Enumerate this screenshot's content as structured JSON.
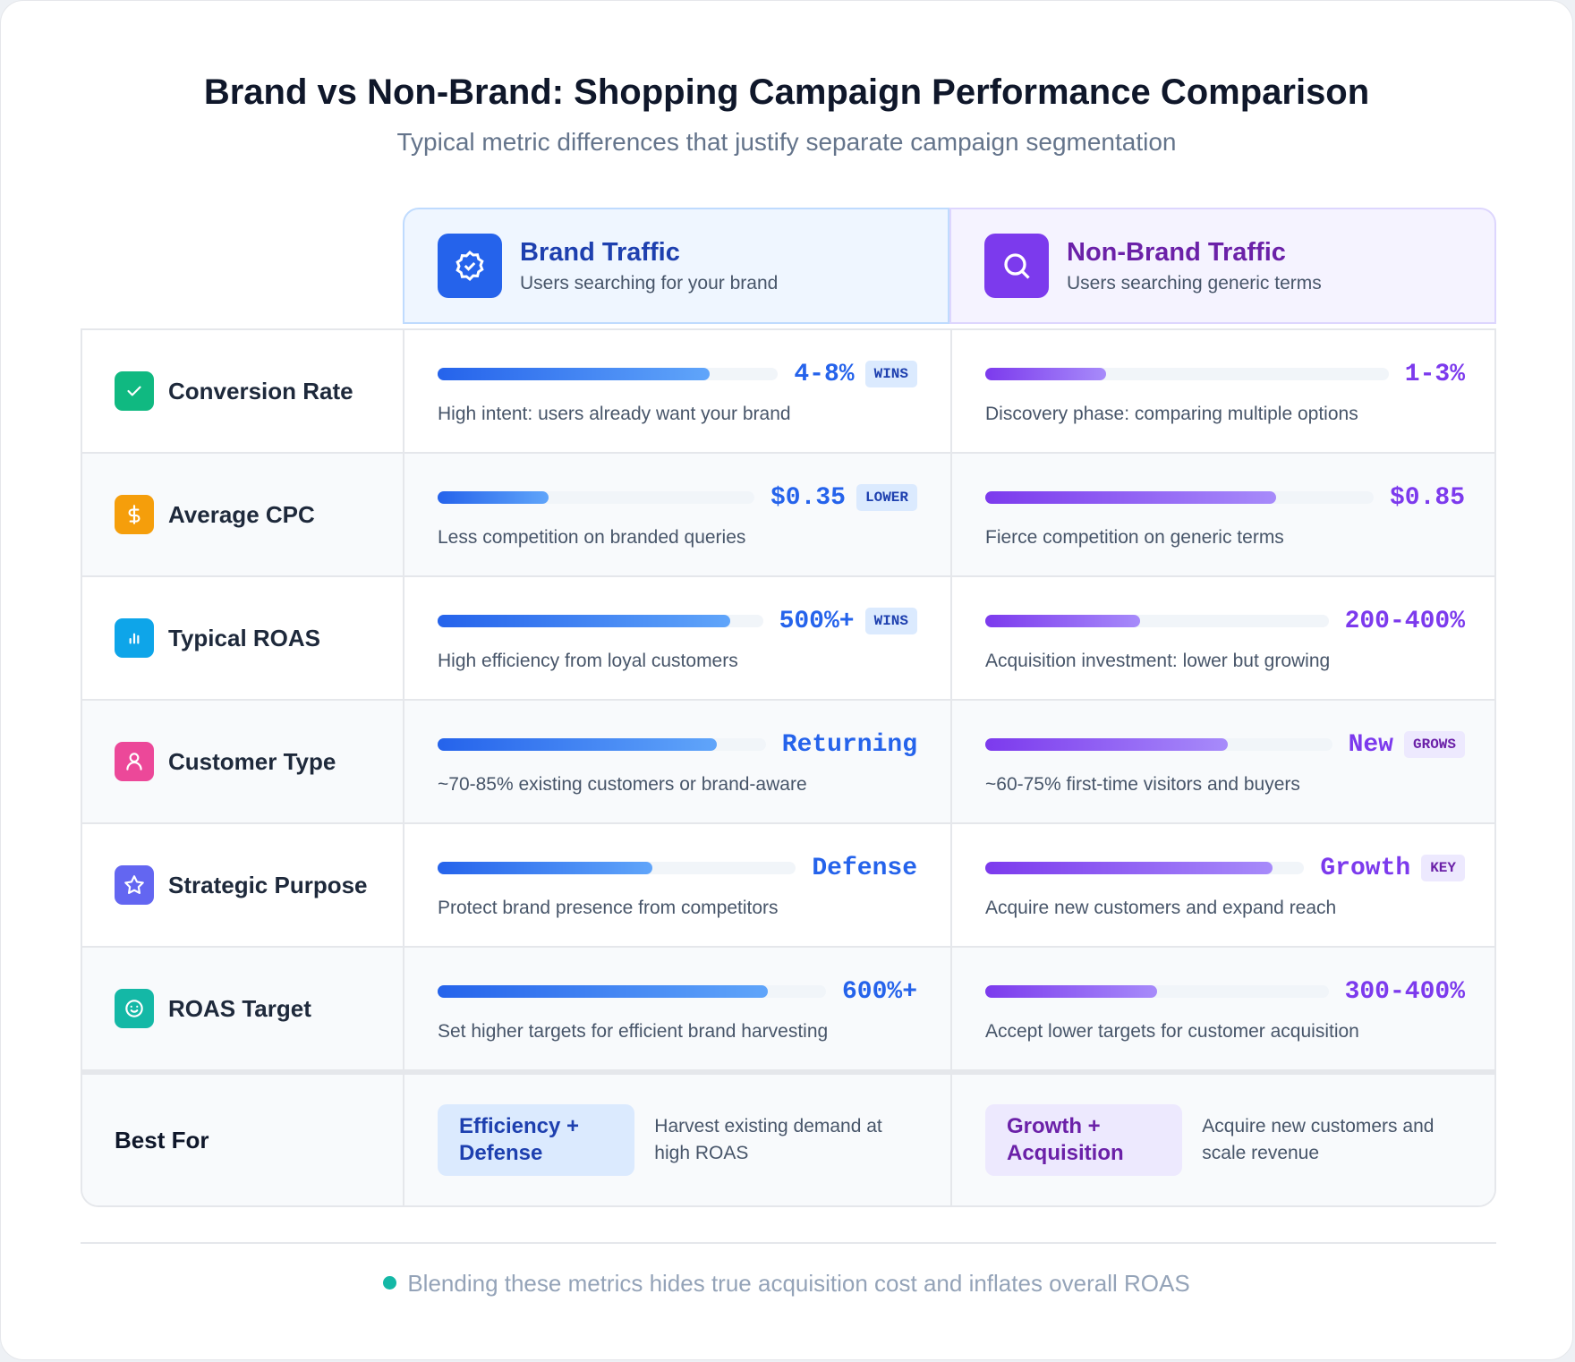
{
  "header": {
    "title": "Brand vs Non-Brand: Shopping Campaign Performance Comparison",
    "subtitle": "Typical metric differences that justify separate campaign segmentation"
  },
  "columns": [
    {
      "title": "Brand Traffic",
      "subtitle": "Users searching for your brand",
      "color": "#2563eb"
    },
    {
      "title": "Non-Brand Traffic",
      "subtitle": "Users searching generic terms",
      "color": "#7c3aed"
    }
  ],
  "rows": [
    {
      "label": "Conversion Rate",
      "color": "#10b981",
      "cells": [
        {
          "value": "4-8%",
          "badge": "WINS",
          "bar": 80,
          "note": "High intent: users already want your brand"
        },
        {
          "value": "1-3%",
          "bar": 30,
          "note": "Discovery phase: comparing multiple options"
        }
      ]
    },
    {
      "label": "Average CPC",
      "color": "#f59e0b",
      "cells": [
        {
          "value": "$0.35",
          "badge": "LOWER",
          "bar": 35,
          "note": "Less competition on branded queries"
        },
        {
          "value": "$0.85",
          "bar": 75,
          "note": "Fierce competition on generic terms"
        }
      ]
    },
    {
      "label": "Typical ROAS",
      "color": "#0ea5e9",
      "cells": [
        {
          "value": "500%+",
          "badge": "WINS",
          "bar": 90,
          "note": "High efficiency from loyal customers"
        },
        {
          "value": "200-400%",
          "bar": 45,
          "note": "Acquisition investment: lower but growing"
        }
      ]
    },
    {
      "label": "Customer Type",
      "color": "#ec4899",
      "cells": [
        {
          "value": "Returning",
          "bar": 85,
          "note": "~70-85% existing customers or brand-aware"
        },
        {
          "value": "New",
          "badge": "GROWS",
          "bar": 70,
          "note": "~60-75% first-time visitors and buyers"
        }
      ]
    },
    {
      "label": "Strategic Purpose",
      "color": "#6366f1",
      "cells": [
        {
          "value": "Defense",
          "bar": 60,
          "note": "Protect brand presence from competitors"
        },
        {
          "value": "Growth",
          "badge": "KEY",
          "bar": 90,
          "note": "Acquire new customers and expand reach"
        }
      ]
    },
    {
      "label": "ROAS Target",
      "color": "#14b8a6",
      "cells": [
        {
          "value": "600%+",
          "bar": 85,
          "note": "Set higher targets for efficient brand harvesting"
        },
        {
          "value": "300-400%",
          "bar": 50,
          "note": "Accept lower targets for customer acquisition"
        }
      ]
    }
  ],
  "best_for": {
    "label": "Best For",
    "cells": [
      {
        "tag": "Efficiency + Defense",
        "note": "Harvest existing demand at high ROAS"
      },
      {
        "tag": "Growth + Acquisition",
        "note": "Acquire new customers and scale revenue"
      }
    ]
  },
  "footer": "Blending these metrics hides true acquisition cost and inflates overall ROAS"
}
